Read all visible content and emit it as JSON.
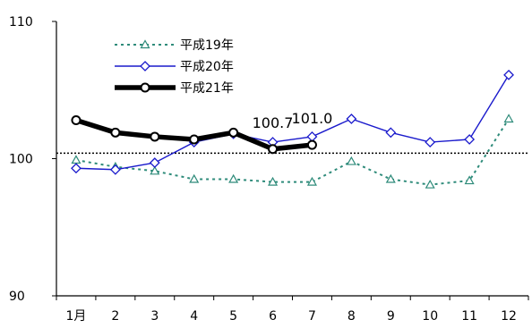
{
  "chart_data": {
    "type": "line",
    "title": "",
    "xlabel": "",
    "ylabel": "",
    "ylim": [
      90,
      110
    ],
    "yticks": [
      "90",
      "100",
      "110"
    ],
    "categories": [
      "1月",
      "2",
      "3",
      "4",
      "5",
      "6",
      "7",
      "8",
      "9",
      "10",
      "11",
      "12"
    ],
    "reference_line": 100.4,
    "legend_position": "top-left",
    "grid": false,
    "series": [
      {
        "name": "平成19年",
        "color": "#2e8b7a",
        "style": "dotted",
        "marker": "triangle",
        "values": [
          99.9,
          99.4,
          99.1,
          98.5,
          98.5,
          98.3,
          98.3,
          99.8,
          98.5,
          98.1,
          98.4,
          102.9
        ]
      },
      {
        "name": "平成20年",
        "color": "#1a1acc",
        "style": "solid",
        "marker": "diamond",
        "values": [
          99.3,
          99.2,
          99.7,
          101.2,
          101.8,
          101.2,
          101.6,
          102.9,
          101.9,
          101.2,
          101.4,
          106.1
        ]
      },
      {
        "name": "平成21年",
        "color": "#000000",
        "style": "bold",
        "marker": "circle",
        "values": [
          102.8,
          101.9,
          101.6,
          101.4,
          101.9,
          100.7,
          101.0,
          null,
          null,
          null,
          null,
          null
        ]
      }
    ],
    "annotations": [
      {
        "text": "100.7",
        "category_index": 5,
        "value": 100.7
      },
      {
        "text": "101.0",
        "category_index": 6,
        "value": 101.0
      }
    ]
  }
}
